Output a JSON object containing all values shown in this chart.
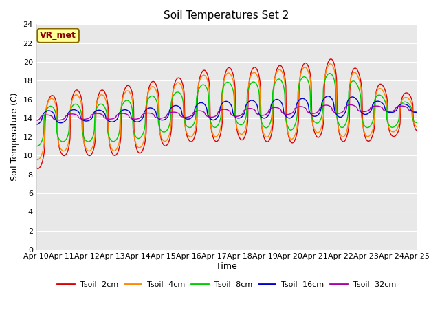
{
  "title": "Soil Temperatures Set 2",
  "xlabel": "Time",
  "ylabel": "Soil Temperature (C)",
  "ylim": [
    0,
    24
  ],
  "yticks": [
    0,
    2,
    4,
    6,
    8,
    10,
    12,
    14,
    16,
    18,
    20,
    22,
    24
  ],
  "xtick_labels": [
    "Apr 10",
    "Apr 11",
    "Apr 12",
    "Apr 13",
    "Apr 14",
    "Apr 15",
    "Apr 16",
    "Apr 17",
    "Apr 18",
    "Apr 19",
    "Apr 20",
    "Apr 21",
    "Apr 22",
    "Apr 23",
    "Apr 24",
    "Apr 25"
  ],
  "series": {
    "Tsoil -2cm": {
      "color": "#dd0000",
      "lw": 1.0
    },
    "Tsoil -4cm": {
      "color": "#ff8800",
      "lw": 1.0
    },
    "Tsoil -8cm": {
      "color": "#00cc00",
      "lw": 1.0
    },
    "Tsoil -16cm": {
      "color": "#0000cc",
      "lw": 1.0
    },
    "Tsoil -32cm": {
      "color": "#aa00aa",
      "lw": 1.0
    }
  },
  "fig_bg": "#ffffff",
  "plot_bg": "#e8e8e8",
  "grid_color": "#ffffff",
  "annotation_text": "VR_met",
  "annotation_bbox": {
    "boxstyle": "round,pad=0.3",
    "facecolor": "#ffff99",
    "edgecolor": "#886600"
  }
}
